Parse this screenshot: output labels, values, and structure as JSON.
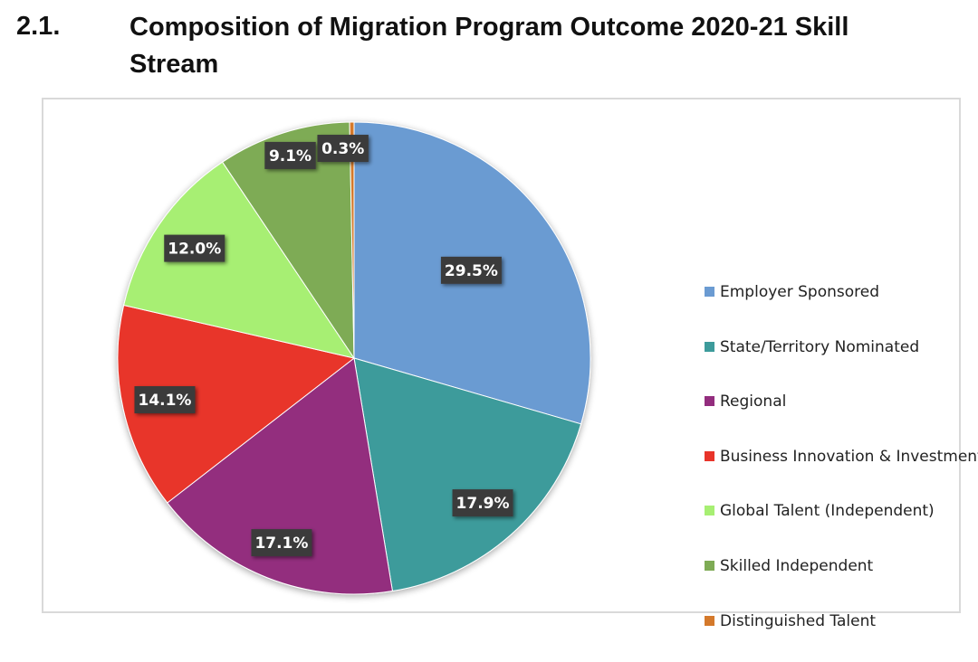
{
  "heading": {
    "number": "2.1.",
    "title": "Composition of Migration Program Outcome 2020-21 Skill Stream"
  },
  "chart_data": {
    "type": "pie",
    "title": "Composition of Migration Program Outcome 2020-21 Skill Stream",
    "legend_position": "right",
    "unit": "%",
    "slices": [
      {
        "name": "Employer Sponsored",
        "value": 29.5,
        "label": "29.5%",
        "color": "#6b9bd2"
      },
      {
        "name": "State/Territory Nominated",
        "value": 17.9,
        "label": "17.9%",
        "color": "#3d9b9b"
      },
      {
        "name": "Regional",
        "value": 17.1,
        "label": "17.1%",
        "color": "#932d7e"
      },
      {
        "name": "Business Innovation & Investment",
        "value": 14.1,
        "label": "14.1%",
        "color": "#e8342a"
      },
      {
        "name": "Global Talent (Independent)",
        "value": 12.0,
        "label": "12.0%",
        "color": "#a7ef73"
      },
      {
        "name": "Skilled Independent",
        "value": 9.1,
        "label": "9.1%",
        "color": "#7eab55"
      },
      {
        "name": "Distinguished Talent",
        "value": 0.3,
        "label": "0.3%",
        "color": "#d4792b"
      }
    ]
  }
}
